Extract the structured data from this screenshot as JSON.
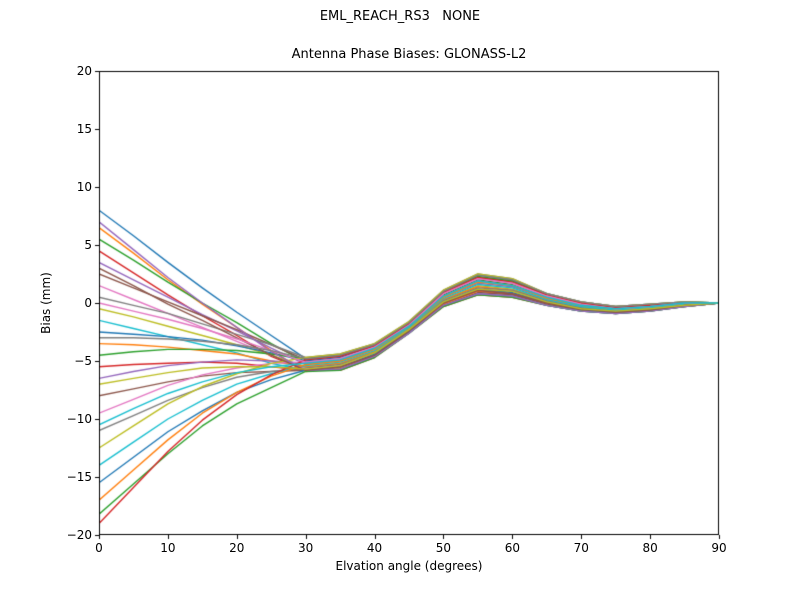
{
  "page": {
    "background": "#ffffff",
    "frame_color": "#000000"
  },
  "chart_data": {
    "type": "line",
    "title": "EML_REACH_RS3   NONE",
    "subtitle": "Antenna Phase Biases: GLONASS-L2",
    "xlabel": "Elvation angle (degrees)",
    "ylabel": "Bias (mm)",
    "xlim": [
      0,
      90
    ],
    "ylim": [
      -20,
      20
    ],
    "grid": false,
    "legend": "none",
    "xticks": [
      0,
      10,
      20,
      30,
      40,
      50,
      60,
      70,
      80,
      90
    ],
    "xticklabels": [
      "0",
      "10",
      "20",
      "30",
      "40",
      "50",
      "60",
      "70",
      "80",
      "90"
    ],
    "yticks": [
      -20,
      -15,
      -10,
      -5,
      0,
      5,
      10,
      15,
      20
    ],
    "yticklabels": [
      "−20",
      "−15",
      "−10",
      "−5",
      "0",
      "5",
      "10",
      "15",
      "20"
    ],
    "palette": [
      "#1f77b4",
      "#ff7f0e",
      "#2ca02c",
      "#d62728",
      "#9467bd",
      "#8c564b",
      "#e377c2",
      "#7f7f7f",
      "#bcbd22",
      "#17becf"
    ],
    "x": [
      0,
      5,
      10,
      15,
      20,
      25,
      30,
      35,
      40,
      45,
      50,
      55,
      60,
      65,
      70,
      75,
      80,
      85,
      90
    ],
    "series": [
      [
        8.0,
        5.8,
        3.5,
        1.3,
        -0.8,
        -2.8,
        -4.8,
        -4.5,
        -3.6,
        -1.7,
        1.0,
        2.4,
        2.0,
        0.8,
        0.1,
        -0.3,
        -0.1,
        0.1,
        0.0
      ],
      [
        6.5,
        4.3,
        2.0,
        -0.1,
        -2.1,
        -4.1,
        -5.9,
        -5.6,
        -4.5,
        -2.5,
        -0.1,
        1.0,
        0.7,
        0.0,
        -0.6,
        -0.8,
        -0.6,
        -0.2,
        0.0
      ],
      [
        5.5,
        3.7,
        1.8,
        0.0,
        -1.7,
        -3.5,
        -5.1,
        -4.8,
        -3.9,
        -1.9,
        0.7,
        2.0,
        1.6,
        0.5,
        -0.1,
        -0.5,
        -0.3,
        0.0,
        0.0
      ],
      [
        4.5,
        2.6,
        0.7,
        -1.1,
        -2.8,
        -4.6,
        -5.8,
        -5.8,
        -4.7,
        -2.6,
        -0.3,
        0.7,
        0.5,
        -0.2,
        -0.7,
        -0.9,
        -0.7,
        -0.3,
        0.0
      ],
      [
        3.5,
        2.0,
        0.5,
        -1.0,
        -2.4,
        -3.9,
        -5.3,
        -5.0,
        -4.0,
        -2.0,
        0.5,
        1.7,
        1.4,
        0.4,
        -0.3,
        -0.6,
        -0.4,
        -0.1,
        0.0
      ],
      [
        2.5,
        1.3,
        0.1,
        -1.1,
        -2.3,
        -3.6,
        -4.9,
        -4.6,
        -3.7,
        -1.8,
        0.9,
        2.2,
        1.9,
        0.7,
        0.0,
        -0.4,
        -0.2,
        0.0,
        0.0
      ],
      [
        1.5,
        0.3,
        -0.9,
        -2.1,
        -3.3,
        -4.5,
        -5.7,
        -5.4,
        -4.3,
        -2.3,
        0.1,
        1.2,
        1.0,
        0.1,
        -0.5,
        -0.7,
        -0.5,
        -0.2,
        0.0
      ],
      [
        0.5,
        -0.2,
        -0.9,
        -1.8,
        -2.7,
        -3.6,
        -4.7,
        -4.4,
        -3.5,
        -1.6,
        1.1,
        2.5,
        2.1,
        0.8,
        0.1,
        -0.3,
        -0.1,
        0.1,
        0.0
      ],
      [
        -0.5,
        -1.2,
        -2.0,
        -2.8,
        -3.6,
        -4.5,
        -5.5,
        -5.2,
        -4.2,
        -2.2,
        0.3,
        1.5,
        1.2,
        0.3,
        -0.3,
        -0.6,
        -0.4,
        -0.1,
        0.0
      ],
      [
        -1.5,
        -2.2,
        -2.9,
        -3.6,
        -4.3,
        -5.2,
        -5.8,
        -5.7,
        -4.6,
        -2.6,
        -0.2,
        0.8,
        0.6,
        -0.2,
        -0.7,
        -0.9,
        -0.7,
        -0.3,
        0.0
      ],
      [
        -2.5,
        -2.7,
        -2.9,
        -3.2,
        -3.7,
        -4.3,
        -5.0,
        -4.7,
        -3.7,
        -1.8,
        0.8,
        2.1,
        1.8,
        0.6,
        -0.1,
        -0.4,
        -0.2,
        0.0,
        0.0
      ],
      [
        -3.5,
        -3.6,
        -3.8,
        -4.1,
        -4.4,
        -5.0,
        -5.5,
        -5.2,
        -4.2,
        -2.2,
        0.3,
        1.4,
        1.1,
        0.2,
        -0.4,
        -0.7,
        -0.5,
        -0.1,
        0.0
      ],
      [
        -4.5,
        -4.2,
        -4.0,
        -4.0,
        -4.1,
        -4.4,
        -4.8,
        -4.5,
        -3.6,
        -1.7,
        1.0,
        2.3,
        1.9,
        0.7,
        0.0,
        -0.4,
        -0.2,
        0.1,
        0.0
      ],
      [
        -5.5,
        -5.3,
        -5.2,
        -5.1,
        -5.2,
        -5.5,
        -5.8,
        -5.5,
        -4.5,
        -2.4,
        0.0,
        1.1,
        0.8,
        0.0,
        -0.5,
        -0.8,
        -0.6,
        -0.2,
        0.0
      ],
      [
        -6.5,
        -5.9,
        -5.4,
        -5.1,
        -4.9,
        -5.0,
        -5.2,
        -4.9,
        -3.9,
        -2.0,
        0.6,
        1.9,
        1.5,
        0.5,
        -0.2,
        -0.5,
        -0.3,
        0.0,
        0.0
      ],
      [
        -8.0,
        -7.4,
        -6.8,
        -6.3,
        -6.0,
        -5.9,
        -5.8,
        -5.7,
        -4.6,
        -2.5,
        -0.2,
        0.9,
        0.7,
        -0.1,
        -0.6,
        -0.8,
        -0.6,
        -0.3,
        0.0
      ],
      [
        -9.5,
        -8.3,
        -7.1,
        -6.2,
        -5.6,
        -5.2,
        -5.1,
        -4.8,
        -3.8,
        -1.9,
        0.8,
        2.1,
        1.7,
        0.6,
        -0.1,
        -0.5,
        -0.3,
        0.0,
        0.0
      ],
      [
        -11.0,
        -9.7,
        -8.4,
        -7.3,
        -6.4,
        -5.9,
        -5.6,
        -5.3,
        -4.3,
        -2.3,
        0.2,
        1.3,
        1.1,
        0.2,
        -0.4,
        -0.7,
        -0.5,
        -0.2,
        0.0
      ],
      [
        -12.5,
        -10.6,
        -8.7,
        -7.2,
        -6.1,
        -5.2,
        -4.7,
        -4.4,
        -3.5,
        -1.6,
        1.1,
        2.5,
        2.1,
        0.8,
        0.1,
        -0.3,
        -0.1,
        0.1,
        0.0
      ],
      [
        -14.0,
        -12.0,
        -10.0,
        -8.4,
        -7.0,
        -6.1,
        -5.4,
        -5.1,
        -4.1,
        -2.1,
        0.4,
        1.6,
        1.3,
        0.3,
        -0.3,
        -0.6,
        -0.4,
        -0.1,
        0.0
      ],
      [
        -15.5,
        -13.3,
        -11.1,
        -9.3,
        -7.7,
        -6.6,
        -5.8,
        -5.5,
        -4.4,
        -2.4,
        0.1,
        1.2,
        0.9,
        0.1,
        -0.5,
        -0.8,
        -0.6,
        -0.2,
        0.0
      ],
      [
        -17.0,
        -14.4,
        -11.8,
        -9.5,
        -7.7,
        -6.3,
        -5.3,
        -5.0,
        -4.0,
        -2.0,
        0.5,
        1.8,
        1.5,
        0.4,
        -0.2,
        -0.5,
        -0.3,
        0.0,
        0.0
      ],
      [
        -18.2,
        -15.6,
        -13.0,
        -10.6,
        -8.7,
        -7.3,
        -5.9,
        -5.8,
        -4.7,
        -2.6,
        -0.3,
        0.7,
        0.5,
        -0.2,
        -0.7,
        -0.9,
        -0.7,
        -0.3,
        0.0
      ],
      [
        -19.0,
        -15.9,
        -12.8,
        -10.1,
        -7.9,
        -6.2,
        -4.9,
        -4.6,
        -3.7,
        -1.8,
        0.9,
        2.2,
        1.8,
        0.7,
        0.0,
        -0.4,
        -0.2,
        0.0,
        0.0
      ],
      [
        7.0,
        4.6,
        2.2,
        0.0,
        -2.1,
        -4.2,
        -5.8,
        -5.7,
        -4.6,
        -2.6,
        -0.2,
        0.8,
        0.6,
        -0.2,
        -0.7,
        -0.9,
        -0.7,
        -0.3,
        0.0
      ],
      [
        3.0,
        1.5,
        -0.1,
        -1.5,
        -3.0,
        -4.5,
        -5.8,
        -5.5,
        -4.5,
        -2.4,
        0.0,
        1.1,
        0.8,
        0.0,
        -0.5,
        -0.8,
        -0.6,
        -0.2,
        0.0
      ],
      [
        0.0,
        -0.7,
        -1.4,
        -2.2,
        -3.1,
        -4.1,
        -5.1,
        -4.8,
        -3.8,
        -1.9,
        0.8,
        2.1,
        1.7,
        0.6,
        -0.1,
        -0.5,
        -0.3,
        0.0,
        0.0
      ],
      [
        -3.0,
        -3.0,
        -3.1,
        -3.3,
        -3.6,
        -4.1,
        -4.8,
        -4.5,
        -3.6,
        -1.7,
        1.0,
        2.4,
        2.0,
        0.8,
        0.1,
        -0.3,
        -0.1,
        0.1,
        0.0
      ],
      [
        -7.0,
        -6.5,
        -6.0,
        -5.6,
        -5.5,
        -5.5,
        -5.7,
        -5.4,
        -4.3,
        -2.3,
        0.1,
        1.2,
        1.0,
        0.1,
        -0.5,
        -0.7,
        -0.5,
        -0.2,
        0.0
      ],
      [
        -10.5,
        -9.1,
        -7.8,
        -6.8,
        -6.0,
        -5.5,
        -5.2,
        -4.9,
        -3.9,
        -2.0,
        0.6,
        1.9,
        1.5,
        0.5,
        -0.2,
        -0.5,
        -0.3,
        0.0,
        0.0
      ]
    ]
  }
}
